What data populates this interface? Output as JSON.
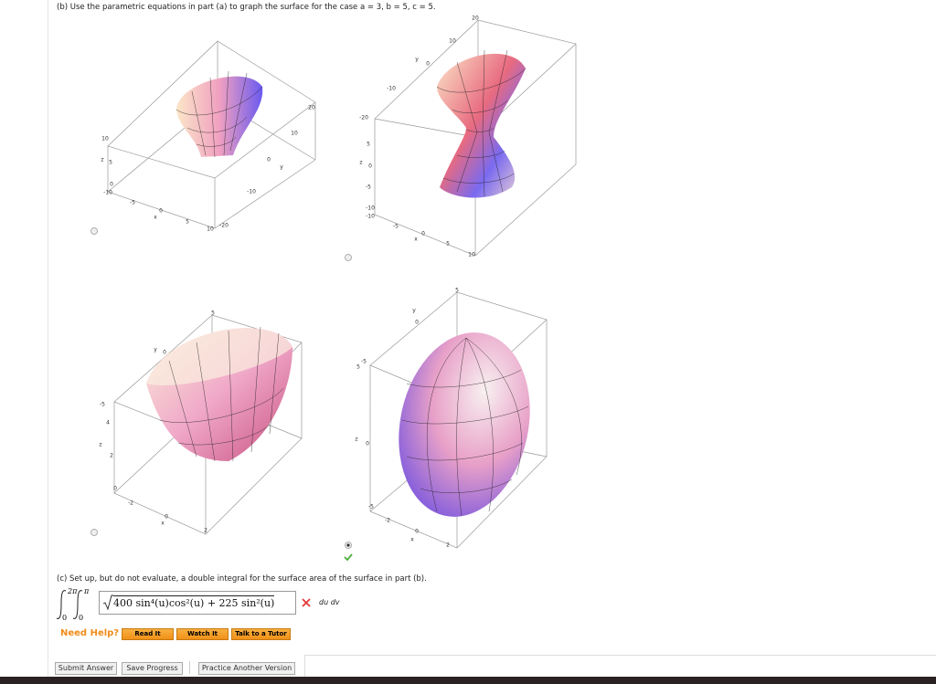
{
  "part_b": {
    "prompt": "(b) Use the parametric equations in part (a) to graph the surface for the case a = 3, b = 5, c = 5.",
    "options": [
      {
        "selected": false,
        "axis_labels": [
          "20",
          "10",
          "y",
          "0",
          "-10",
          "-20",
          "10",
          "5",
          "x",
          "0",
          "-5",
          "-10",
          "0",
          "5",
          "z",
          "10"
        ]
      },
      {
        "selected": false,
        "axis_labels": [
          "20",
          "10",
          "y",
          "0",
          "-10",
          "-20",
          "5",
          "z",
          "0",
          "-5",
          "-10",
          "-10",
          "-5",
          "0",
          "x",
          "5",
          "10"
        ]
      },
      {
        "selected": false,
        "axis_labels": [
          "5",
          "y",
          "0",
          "-5",
          "4",
          "z",
          "2",
          "0",
          "-2",
          "0",
          "x",
          "2"
        ]
      },
      {
        "selected": true,
        "axis_labels": [
          "5",
          "y",
          "0",
          "-5",
          "5",
          "z",
          "0",
          "-5",
          "-2",
          "0",
          "x",
          "2"
        ]
      }
    ],
    "result": "correct"
  },
  "part_c": {
    "prompt": "(c) Set up, but do not evaluate, a double integral for the surface area of the surface in part (b).",
    "outer_upper": "2π",
    "outer_lower": "0",
    "inner_upper": "π",
    "inner_lower": "0",
    "answer": "400 sin⁴(u)cos²(u) + 225 sin²(u)",
    "differentials": "du dv",
    "result": "incorrect"
  },
  "help": {
    "label": "Need Help?",
    "buttons": [
      "Read It",
      "Watch It",
      "Talk to a Tutor"
    ]
  },
  "actions": [
    "Submit Answer",
    "Save Progress",
    "Practice Another Version"
  ]
}
